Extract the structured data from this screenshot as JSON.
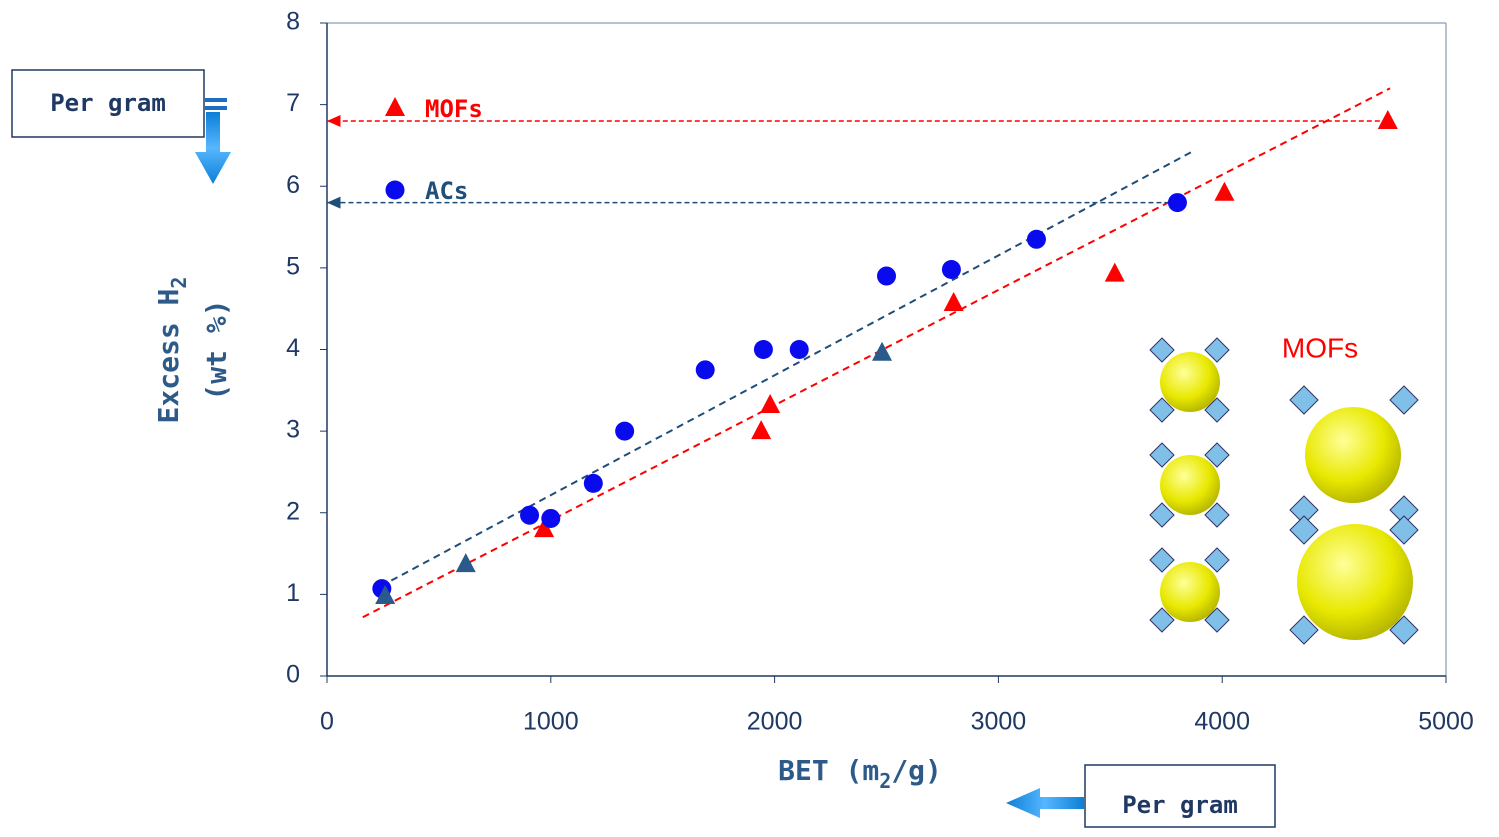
{
  "chart_data": {
    "type": "scatter",
    "xlabel": {
      "text": "BET (m",
      "sub": "2",
      "tail": "/g)"
    },
    "ylabel": {
      "text": "Excess H",
      "sub": "2",
      "line2": "(wt %)"
    },
    "xlim": [
      0,
      5000
    ],
    "xticks": [
      0,
      1000,
      2000,
      3000,
      4000,
      5000
    ],
    "ylim": [
      0,
      8
    ],
    "yticks": [
      0,
      1,
      2,
      3,
      4,
      5,
      6,
      7,
      8
    ],
    "legend": "upper-left",
    "series": [
      {
        "name": "MOFs",
        "color": "#ff0000",
        "marker": "triangle",
        "x": [
          970,
          1940,
          1980,
          2800,
          3520,
          4010,
          4740
        ],
        "values": [
          1.8,
          3.0,
          3.32,
          4.57,
          4.93,
          5.92,
          6.8
        ]
      },
      {
        "name": "ACs",
        "color": "#0a0aee",
        "marker": "circle",
        "x": [
          245,
          905,
          1000,
          1190,
          1330,
          1690,
          1950,
          2110,
          2500,
          2790,
          3170,
          3800
        ],
        "values": [
          1.07,
          1.97,
          1.93,
          2.36,
          3.0,
          3.75,
          4.0,
          4.0,
          4.9,
          4.98,
          5.35,
          5.8
        ]
      },
      {
        "color": "#2a5a8c",
        "marker": "triangle",
        "x": [
          260,
          620,
          2480
        ],
        "values": [
          0.98,
          1.37,
          3.96
        ]
      }
    ],
    "trendlines": [
      {
        "color": "#1f4e79",
        "x": [
          240,
          3870
        ],
        "values": [
          1.1,
          6.43
        ]
      },
      {
        "color": "#ff0000",
        "x": [
          160,
          4750
        ],
        "values": [
          0.72,
          7.2
        ]
      }
    ],
    "reference_arrows": [
      {
        "color": "#ff0000",
        "x": [
          4740,
          0
        ],
        "values": [
          6.8,
          6.8
        ]
      },
      {
        "color": "#1f4e79",
        "x": [
          3800,
          0
        ],
        "values": [
          5.8,
          5.8
        ]
      }
    ],
    "annotations": {
      "per_gram_y": "Per gram",
      "per_gram_x": "Per gram",
      "inset_label": "MOFs"
    }
  }
}
